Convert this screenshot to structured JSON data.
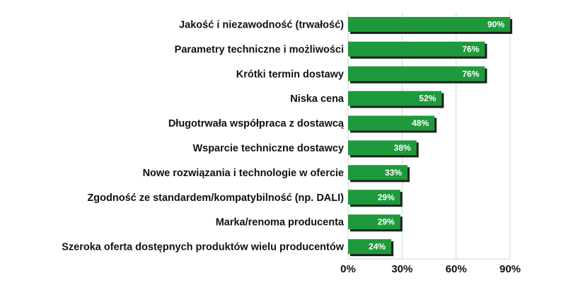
{
  "chart_data": {
    "type": "bar",
    "orientation": "horizontal",
    "categories": [
      "Jakość i niezawodność (trwałość)",
      "Parametry techniczne i możliwości",
      "Krótki termin dostawy",
      "Niska cena",
      "Długotrwała współpraca z dostawcą",
      "Wsparcie techniczne dostawcy",
      "Nowe rozwiązania i technologie w ofercie",
      "Zgodność ze standardem/kompatybilność (np. DALI)",
      "Marka/renoma producenta",
      "Szeroka oferta dostępnych produktów wielu producentów"
    ],
    "values": [
      90,
      76,
      76,
      52,
      48,
      38,
      33,
      29,
      29,
      24
    ],
    "value_labels": [
      "90%",
      "76%",
      "76%",
      "52%",
      "48%",
      "38%",
      "33%",
      "29%",
      "29%",
      "24%"
    ],
    "xlim": [
      0,
      90
    ],
    "xticks": [
      0,
      30,
      60,
      90
    ],
    "xtick_labels": [
      "0%",
      "30%",
      "60%",
      "90%"
    ],
    "grid": true,
    "legend": "none",
    "colors": {
      "bar": "#1e9a3c",
      "bar_shadow": "#1f1f1f",
      "grid": "#bfe3c6",
      "value_text": "#ffffff"
    }
  }
}
